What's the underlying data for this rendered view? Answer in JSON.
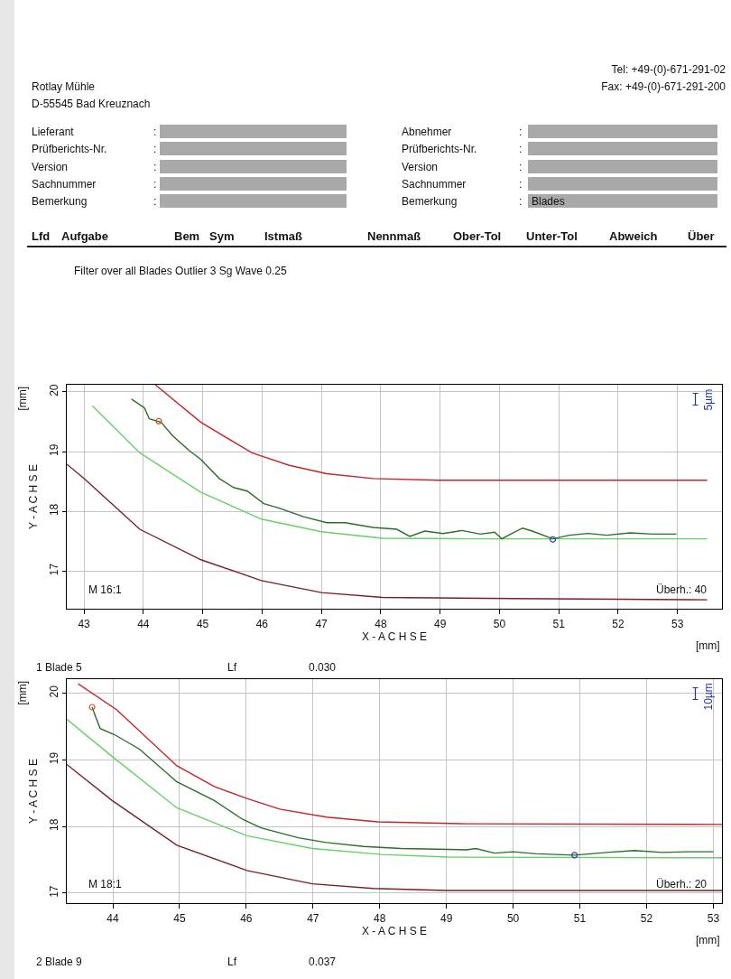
{
  "chart_data": [
    {
      "type": "other",
      "annotations": [
        "Rotlay Mühle",
        "D-55545 Bad Kreuznach",
        "Tel: +49-(0)-671-291-02",
        "Fax: +49-(0)-671-291-200",
        "Lieferant :",
        "Prüfberichts-Nr. :",
        "Version :",
        "Sachnummer :",
        "Bemerkung :",
        "Abnehmer :",
        "Prüfberichts-Nr. :",
        "Version :",
        "Sachnummer :",
        "Bemerkung :",
        "Blades",
        "Lfd",
        "Aufgabe",
        "Bem",
        "Sym",
        "Istmaß",
        "Nennmaß",
        "Ober-Tol",
        "Unter-Tol",
        "Abweich",
        "Über",
        "Filter over all Blades Outlier 3 Sg Wave 0.25"
      ]
    },
    {
      "type": "line",
      "xlabel": "X - A C H S E",
      "ylabel": "Y - A C H S E",
      "xlim": [
        42.71,
        53.75
      ],
      "ylim": [
        16.37,
        20.12
      ],
      "xticks": [
        43,
        44,
        45,
        46,
        47,
        48,
        49,
        50,
        51,
        52,
        53
      ],
      "yticks": [
        17,
        18,
        19,
        20
      ],
      "grid": true,
      "marker": "none",
      "line_style": "solid",
      "annotations": [
        "[mm]",
        "[mm]",
        "M 16:1",
        "Überh.: 40",
        "5µm",
        "1 Blade 5",
        "Lf",
        "0.030"
      ],
      "series": [
        {
          "color": "#c0262b",
          "x": [
            44.2,
            44.97,
            45.83,
            46.46,
            47.09,
            47.87,
            48.97,
            53.5
          ],
          "values": [
            20.12,
            19.49,
            18.98,
            18.77,
            18.63,
            18.55,
            18.52,
            18.52
          ]
        },
        {
          "color": "#7a1f24",
          "x": [
            42.71,
            43.0,
            43.94,
            44.97,
            45.99,
            47.0,
            48.03,
            50.23,
            53.5
          ],
          "values": [
            18.79,
            18.55,
            17.7,
            17.19,
            16.84,
            16.64,
            16.56,
            16.54,
            16.52
          ]
        },
        {
          "color": "#66d066",
          "x": [
            43.14,
            43.94,
            44.97,
            45.99,
            47.0,
            48.03,
            49.45,
            53.5
          ],
          "values": [
            19.77,
            18.98,
            18.32,
            17.87,
            17.66,
            17.55,
            17.54,
            17.54
          ]
        },
        {
          "color": "#2a6e2a",
          "x": [
            43.8,
            44.02,
            44.1,
            44.3,
            44.49,
            44.77,
            44.97,
            45.28,
            45.52,
            45.75,
            46.03,
            46.3,
            46.7,
            47.09,
            47.4,
            47.87,
            48.27,
            48.49,
            48.74,
            49.05,
            49.37,
            49.68,
            49.92,
            50.04,
            50.19,
            50.39,
            50.55,
            50.9,
            51.18,
            51.49,
            51.81,
            52.2,
            52.59,
            52.98
          ],
          "values": [
            19.88,
            19.73,
            19.55,
            19.49,
            19.27,
            19.02,
            18.87,
            18.55,
            18.4,
            18.34,
            18.13,
            18.05,
            17.91,
            17.81,
            17.81,
            17.73,
            17.7,
            17.58,
            17.67,
            17.63,
            17.68,
            17.62,
            17.65,
            17.54,
            17.62,
            17.72,
            17.67,
            17.54,
            17.6,
            17.63,
            17.6,
            17.64,
            17.62,
            17.62
          ]
        },
        {
          "type": "scatter",
          "marker": "circle",
          "color": "#d0522a",
          "x": [
            44.26
          ],
          "values": [
            19.51
          ]
        },
        {
          "type": "scatter",
          "marker": "circle",
          "color": "#2f3fa0",
          "x": [
            50.9
          ],
          "values": [
            17.53
          ]
        }
      ]
    },
    {
      "type": "line",
      "xlabel": "X - A C H S E",
      "ylabel": "Y - A C H S E",
      "xlim": [
        43.31,
        53.13
      ],
      "ylim": [
        16.85,
        20.21
      ],
      "xticks": [
        44,
        45,
        46,
        47,
        48,
        49,
        50,
        51,
        52,
        53
      ],
      "yticks": [
        17,
        18,
        19,
        20
      ],
      "grid": true,
      "marker": "none",
      "line_style": "solid",
      "annotations": [
        "[mm]",
        "[mm]",
        "M 18:1",
        "Überh.: 20",
        "10µm",
        "2 Blade 9",
        "Lf",
        "0.037"
      ],
      "series": [
        {
          "color": "#c0262b",
          "x": [
            43.48,
            44.06,
            44.96,
            45.52,
            46.01,
            46.5,
            47.2,
            47.97,
            49.3,
            53.13
          ],
          "values": [
            20.14,
            19.75,
            18.91,
            18.6,
            18.42,
            18.26,
            18.14,
            18.07,
            18.04,
            18.03
          ]
        },
        {
          "color": "#7a1f24",
          "x": [
            43.31,
            43.99,
            44.96,
            46.01,
            46.99,
            47.9,
            49.02,
            53.13
          ],
          "values": [
            18.93,
            18.39,
            17.72,
            17.34,
            17.14,
            17.07,
            17.04,
            17.04
          ]
        },
        {
          "color": "#66d066",
          "x": [
            43.31,
            43.99,
            44.96,
            46.01,
            46.99,
            48.03,
            49.02,
            53.13
          ],
          "values": [
            19.61,
            19.05,
            18.28,
            17.86,
            17.67,
            17.58,
            17.54,
            17.53
          ]
        },
        {
          "color": "#2a6e2a",
          "x": [
            43.69,
            43.74,
            43.81,
            44.02,
            44.4,
            44.96,
            45.52,
            45.94,
            46.22,
            46.78,
            47.2,
            47.76,
            48.32,
            49.3,
            49.44,
            49.72,
            50.0,
            50.35,
            50.92,
            51.4,
            51.82,
            52.24,
            52.59,
            53.0
          ],
          "values": [
            19.79,
            19.65,
            19.47,
            19.38,
            19.16,
            18.67,
            18.39,
            18.11,
            17.98,
            17.83,
            17.76,
            17.7,
            17.67,
            17.65,
            17.67,
            17.6,
            17.62,
            17.59,
            17.57,
            17.61,
            17.64,
            17.61,
            17.62,
            17.62
          ]
        },
        {
          "type": "scatter",
          "marker": "circle",
          "color": "#d0522a",
          "x": [
            43.69
          ],
          "values": [
            19.79
          ]
        },
        {
          "type": "scatter",
          "marker": "circle",
          "color": "#2f3fa0",
          "x": [
            50.92
          ],
          "values": [
            17.57
          ]
        }
      ]
    }
  ]
}
